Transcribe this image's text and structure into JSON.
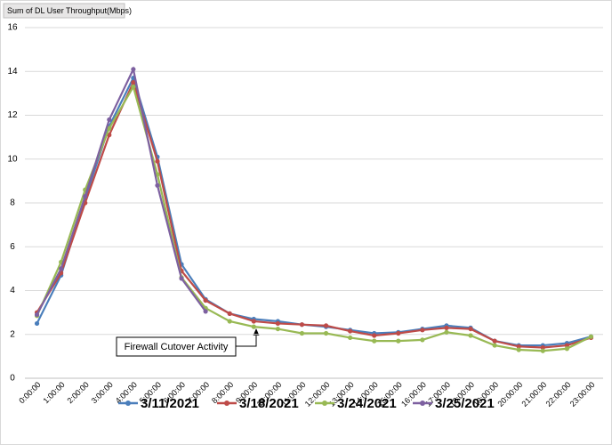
{
  "chart_data": {
    "type": "line",
    "title": "Sum of DL User Throughput(Mbps)",
    "annotation": "Firewall Cutover Activity",
    "categories": [
      "0:00:00",
      "1:00:00",
      "2:00:00",
      "3:00:00",
      "4:00:00",
      "5:00:00",
      "6:00:00",
      "7:00:00",
      "8:00:00",
      "9:00:00",
      "10:00:00",
      "11:00:00",
      "12:00:00",
      "13:00:00",
      "14:00:00",
      "15:00:00",
      "16:00:00",
      "17:00:00",
      "18:00:00",
      "19:00:00",
      "20:00:00",
      "21:00:00",
      "22:00:00",
      "23:00:00"
    ],
    "series": [
      {
        "name": "3/11/2021",
        "color": "#4a7ebb",
        "values": [
          2.5,
          4.7,
          8.2,
          11.5,
          13.7,
          10.1,
          5.2,
          3.6,
          2.95,
          2.7,
          2.6,
          2.45,
          2.35,
          2.2,
          2.05,
          2.1,
          2.25,
          2.4,
          2.3,
          1.7,
          1.5,
          1.5,
          1.6,
          1.9
        ]
      },
      {
        "name": "3/18/2021",
        "color": "#be4b48",
        "values": [
          3.0,
          4.8,
          8.0,
          11.1,
          13.5,
          9.9,
          4.9,
          3.55,
          2.95,
          2.6,
          2.5,
          2.45,
          2.4,
          2.15,
          1.95,
          2.05,
          2.2,
          2.3,
          2.25,
          1.7,
          1.45,
          1.4,
          1.5,
          1.85
        ]
      },
      {
        "name": "3/24/2021",
        "color": "#98b954",
        "values": [
          2.85,
          5.3,
          8.6,
          11.4,
          13.3,
          9.3,
          4.6,
          3.2,
          2.6,
          2.35,
          2.25,
          2.05,
          2.05,
          1.85,
          1.7,
          1.7,
          1.75,
          2.1,
          1.95,
          1.5,
          1.3,
          1.25,
          1.35,
          1.9
        ]
      },
      {
        "name": "3/25/2021",
        "color": "#7d60a0",
        "values": [
          2.9,
          5.0,
          8.3,
          11.8,
          14.1,
          8.8,
          4.55,
          3.05,
          null,
          null,
          null,
          null,
          null,
          null,
          null,
          null,
          null,
          null,
          null,
          null,
          null,
          null,
          null,
          null
        ]
      }
    ],
    "ylim": [
      0,
      16
    ],
    "yticks": [
      0,
      2,
      4,
      6,
      8,
      10,
      12,
      14,
      16
    ],
    "grid": true
  }
}
